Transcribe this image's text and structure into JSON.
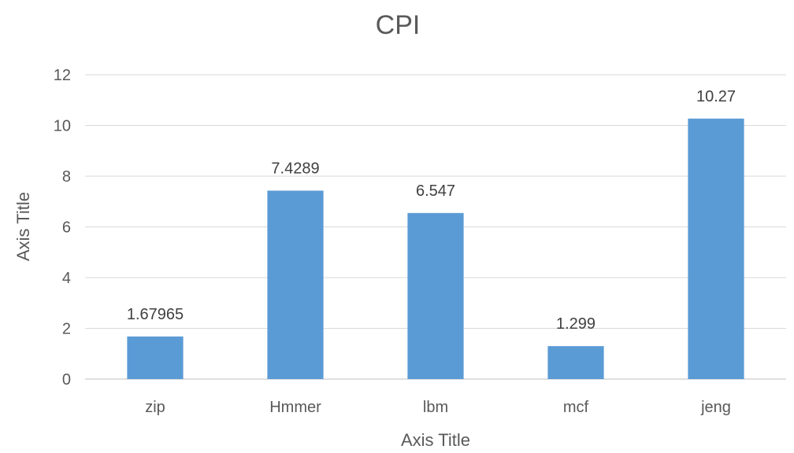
{
  "chart_data": {
    "type": "bar",
    "title": "CPI",
    "xlabel": "Axis Title",
    "ylabel": "Axis Title",
    "categories": [
      "zip",
      "Hmmer",
      "lbm",
      "mcf",
      "jeng"
    ],
    "values": [
      1.67965,
      7.4289,
      6.547,
      1.299,
      10.27
    ],
    "data_labels": [
      "1.67965",
      "7.4289",
      "6.547",
      "1.299",
      "10.27"
    ],
    "ylim": [
      0,
      12
    ],
    "yticks": [
      0,
      2,
      4,
      6,
      8,
      10,
      12
    ],
    "grid": true,
    "legend": "none",
    "bar_color": "#5b9bd5"
  }
}
